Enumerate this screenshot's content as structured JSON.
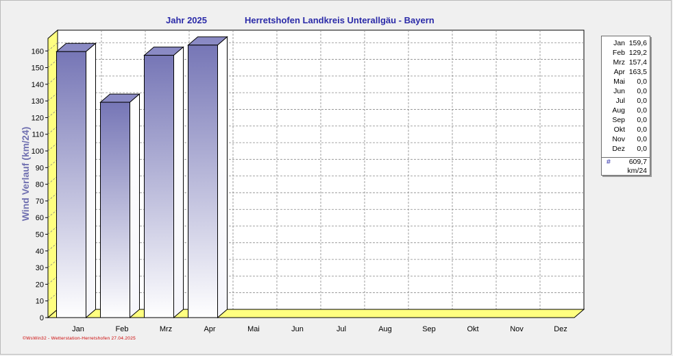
{
  "header": {
    "year_label": "Jahr  2025",
    "station_label": "Herretshofen Landkreis Unterallgäu - Bayern"
  },
  "chart_data": {
    "type": "bar",
    "ylabel": "Wind Verlauf   (km/24)",
    "ylim": [
      0,
      165
    ],
    "yticks": [
      0,
      10,
      20,
      30,
      40,
      50,
      60,
      70,
      80,
      90,
      100,
      110,
      120,
      130,
      140,
      150,
      160
    ],
    "grid": true,
    "categories": [
      "Jan",
      "Feb",
      "Mrz",
      "Apr",
      "Mai",
      "Jun",
      "Jul",
      "Aug",
      "Sep",
      "Okt",
      "Nov",
      "Dez"
    ],
    "values": [
      159.6,
      129.2,
      157.4,
      163.5,
      0,
      0,
      0,
      0,
      0,
      0,
      0,
      0
    ],
    "colors": {
      "bar_top": "#7878b8",
      "bar_bottom": "#ffffff",
      "floor": "#ffff80",
      "grid": "#888888"
    }
  },
  "legend": {
    "rows": [
      {
        "month": "Jan",
        "value": "159,6"
      },
      {
        "month": "Feb",
        "value": "129,2"
      },
      {
        "month": "Mrz",
        "value": "157,4"
      },
      {
        "month": "Apr",
        "value": "163,5"
      },
      {
        "month": "Mai",
        "value": "0,0"
      },
      {
        "month": "Jun",
        "value": "0,0"
      },
      {
        "month": "Jul",
        "value": "0,0"
      },
      {
        "month": "Aug",
        "value": "0,0"
      },
      {
        "month": "Sep",
        "value": "0,0"
      },
      {
        "month": "Okt",
        "value": "0,0"
      },
      {
        "month": "Nov",
        "value": "0,0"
      },
      {
        "month": "Dez",
        "value": "0,0"
      }
    ],
    "total_symbol": "#",
    "total_value": "609,7",
    "total_unit": "km/24"
  },
  "footer": "©WsWin32 - Wetterstation-Herretshofen  27.04.2025"
}
